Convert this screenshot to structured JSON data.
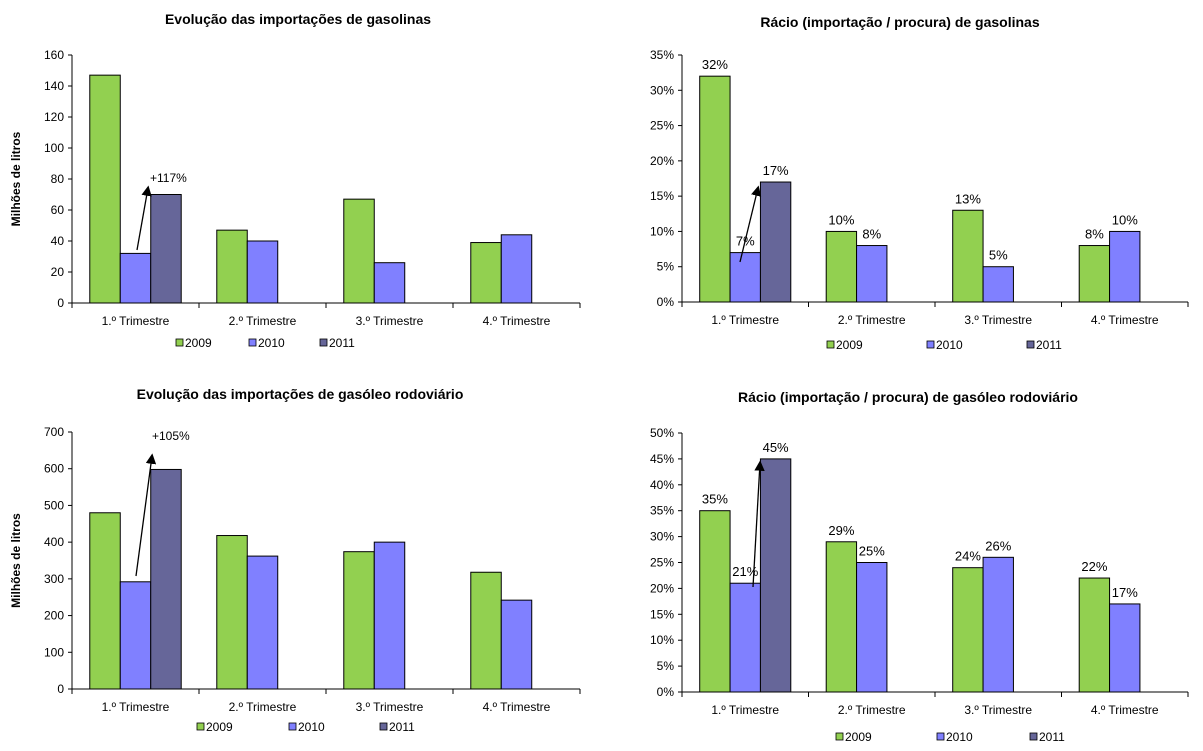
{
  "colors": {
    "2009": "#92d050",
    "2010": "#8080ff",
    "2011": "#666699"
  },
  "chart_data": [
    {
      "type": "bar",
      "title": "Evolução das importações de gasolinas",
      "ylabel": "Milhões de litros",
      "categories": [
        "1.º Trimestre",
        "2.º Trimestre",
        "3.º Trimestre",
        "4.º Trimestre"
      ],
      "ylim": [
        0,
        160
      ],
      "yticks": [
        "0",
        "20",
        "40",
        "60",
        "80",
        "100",
        "120",
        "140",
        "160"
      ],
      "series": [
        {
          "name": "2009",
          "values": [
            147,
            47,
            67,
            39
          ]
        },
        {
          "name": "2010",
          "values": [
            32,
            40,
            26,
            44
          ]
        },
        {
          "name": "2011",
          "values": [
            70,
            null,
            null,
            null
          ]
        }
      ],
      "data_labels": false,
      "annotation": "+117%",
      "legend": "bottom",
      "grid": false
    },
    {
      "type": "bar",
      "title": "Rácio (importação / procura) de gasolinas",
      "ylabel": "",
      "categories": [
        "1.º Trimestre",
        "2.º Trimestre",
        "3.º Trimestre",
        "4.º Trimestre"
      ],
      "ylim": [
        0,
        35
      ],
      "yticks": [
        "0%",
        "5%",
        "10%",
        "15%",
        "20%",
        "25%",
        "30%",
        "35%"
      ],
      "series": [
        {
          "name": "2009",
          "values": [
            32,
            10,
            13,
            8
          ],
          "labels": [
            "32%",
            "10%",
            "13%",
            "8%"
          ]
        },
        {
          "name": "2010",
          "values": [
            7,
            8,
            5,
            10
          ],
          "labels": [
            "7%",
            "8%",
            "5%",
            "10%"
          ]
        },
        {
          "name": "2011",
          "values": [
            17,
            null,
            null,
            null
          ],
          "labels": [
            "17%",
            "",
            "",
            ""
          ]
        }
      ],
      "data_labels": true,
      "annotation": "",
      "legend": "bottom",
      "grid": false
    },
    {
      "type": "bar",
      "title": "Evolução das importações de gasóleo rodoviário",
      "ylabel": "Milhões de litros",
      "categories": [
        "1.º Trimestre",
        "2.º Trimestre",
        "3.º Trimestre",
        "4.º Trimestre"
      ],
      "ylim": [
        0,
        700
      ],
      "yticks": [
        "0",
        "100",
        "200",
        "300",
        "400",
        "500",
        "600",
        "700"
      ],
      "series": [
        {
          "name": "2009",
          "values": [
            480,
            418,
            374,
            318
          ]
        },
        {
          "name": "2010",
          "values": [
            292,
            362,
            400,
            242
          ]
        },
        {
          "name": "2011",
          "values": [
            598,
            null,
            null,
            null
          ]
        }
      ],
      "data_labels": false,
      "annotation": "+105%",
      "legend": "bottom",
      "grid": false
    },
    {
      "type": "bar",
      "title": "Rácio (importação / procura) de gasóleo rodoviário",
      "ylabel": "",
      "categories": [
        "1.º Trimestre",
        "2.º Trimestre",
        "3.º Trimestre",
        "4.º Trimestre"
      ],
      "ylim": [
        0,
        50
      ],
      "yticks": [
        "0%",
        "5%",
        "10%",
        "15%",
        "20%",
        "25%",
        "30%",
        "35%",
        "40%",
        "45%",
        "50%"
      ],
      "series": [
        {
          "name": "2009",
          "values": [
            35,
            29,
            24,
            22
          ],
          "labels": [
            "35%",
            "29%",
            "24%",
            "22%"
          ]
        },
        {
          "name": "2010",
          "values": [
            21,
            25,
            26,
            17
          ],
          "labels": [
            "21%",
            "25%",
            "26%",
            "17%"
          ]
        },
        {
          "name": "2011",
          "values": [
            45,
            null,
            null,
            null
          ],
          "labels": [
            "45%",
            "",
            "",
            ""
          ]
        }
      ],
      "data_labels": true,
      "annotation": "",
      "legend": "bottom",
      "grid": false
    }
  ]
}
